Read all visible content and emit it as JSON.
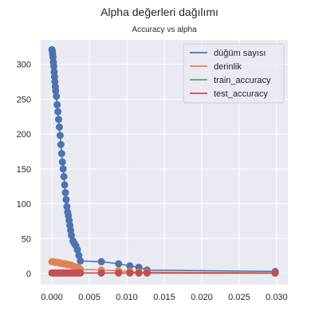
{
  "chart_data": {
    "type": "line",
    "suptitle": "Alpha değerleri dağılımı",
    "title": "Accuracy vs alpha",
    "xlabel": "",
    "ylabel": "",
    "xlim": [
      -0.0015,
      0.0315
    ],
    "ylim": [
      -16,
      335
    ],
    "xticks": [
      0.0,
      0.005,
      0.01,
      0.015,
      0.02,
      0.025,
      0.03
    ],
    "xtick_labels": [
      "0.000",
      "0.005",
      "0.010",
      "0.015",
      "0.020",
      "0.025",
      "0.030"
    ],
    "yticks": [
      0,
      50,
      100,
      150,
      200,
      250,
      300
    ],
    "ytick_labels": [
      "0",
      "50",
      "100",
      "150",
      "200",
      "250",
      "300"
    ],
    "grid": true,
    "legend_position": "top-right",
    "colors": {
      "background": "#EAEAF2",
      "grid": "#FFFFFF",
      "text": "#262626",
      "legend_bg": "#EAEAF2",
      "legend_border": "#CCCCCC"
    },
    "series": [
      {
        "name": "düğüm sayısı",
        "color": "#4C72B0",
        "x": [
          0.0,
          5e-05,
          0.0001,
          0.00015,
          0.0002,
          0.00025,
          0.0003,
          0.00035,
          0.0004,
          0.00045,
          0.0005,
          0.0006,
          0.0007,
          0.0008,
          0.0009,
          0.001,
          0.0011,
          0.0012,
          0.0013,
          0.0014,
          0.0015,
          0.0016,
          0.0017,
          0.0018,
          0.0019,
          0.002,
          0.0021,
          0.0022,
          0.0023,
          0.0024,
          0.0025,
          0.0026,
          0.0028,
          0.003,
          0.0032,
          0.0034,
          0.0036,
          0.0038,
          0.0066,
          0.0089,
          0.0104,
          0.0116,
          0.0127,
          0.0298
        ],
        "y": [
          321,
          319,
          315,
          310,
          303,
          297,
          289,
          282,
          275,
          268,
          262,
          254,
          242,
          232,
          221,
          210,
          198,
          185,
          172,
          160,
          150,
          139,
          127,
          116,
          106,
          96,
          88,
          83,
          76,
          69,
          62,
          55,
          47,
          43,
          40,
          34,
          26,
          18,
          17,
          14,
          11,
          9,
          5,
          3
        ]
      },
      {
        "name": "derinlik",
        "color": "#DD8452",
        "x": [
          0.0,
          0.0002,
          0.0004,
          0.0006,
          0.0008,
          0.001,
          0.0012,
          0.0014,
          0.0016,
          0.0018,
          0.002,
          0.0022,
          0.0024,
          0.0026,
          0.0028,
          0.003,
          0.0032,
          0.0034,
          0.0036,
          0.0038,
          0.0066,
          0.0089,
          0.0104,
          0.0116,
          0.0127,
          0.0298
        ],
        "y": [
          17,
          17,
          16,
          16,
          16,
          15,
          15,
          14,
          14,
          14,
          13,
          13,
          12,
          12,
          11,
          10,
          9,
          9,
          8,
          6,
          5,
          4,
          3,
          2,
          2,
          1
        ]
      },
      {
        "name": "train_accuracy",
        "color": "#55A868",
        "x": [
          0.0,
          0.0005,
          0.001,
          0.0015,
          0.002,
          0.0025,
          0.003,
          0.0035,
          0.0038,
          0.0066,
          0.0089,
          0.0104,
          0.0116,
          0.0127,
          0.0298
        ],
        "y": [
          1.0,
          0.99,
          0.98,
          0.96,
          0.94,
          0.92,
          0.9,
          0.88,
          0.86,
          0.84,
          0.82,
          0.8,
          0.78,
          0.76,
          0.6
        ]
      },
      {
        "name": "test_accuracy",
        "color": "#C44E52",
        "x": [
          0.0,
          0.0002,
          0.0004,
          0.0006,
          0.0008,
          0.001,
          0.0012,
          0.0014,
          0.0016,
          0.0018,
          0.002,
          0.0022,
          0.0024,
          0.0026,
          0.0028,
          0.003,
          0.0032,
          0.0034,
          0.0036,
          0.0038,
          0.0066,
          0.0089,
          0.0104,
          0.0116,
          0.0127,
          0.0298
        ],
        "y": [
          0.75,
          0.75,
          0.76,
          0.76,
          0.76,
          0.77,
          0.77,
          0.77,
          0.78,
          0.78,
          0.78,
          0.78,
          0.79,
          0.79,
          0.79,
          0.79,
          0.8,
          0.8,
          0.8,
          0.8,
          0.79,
          0.78,
          0.77,
          0.76,
          0.75,
          0.6
        ]
      }
    ]
  }
}
